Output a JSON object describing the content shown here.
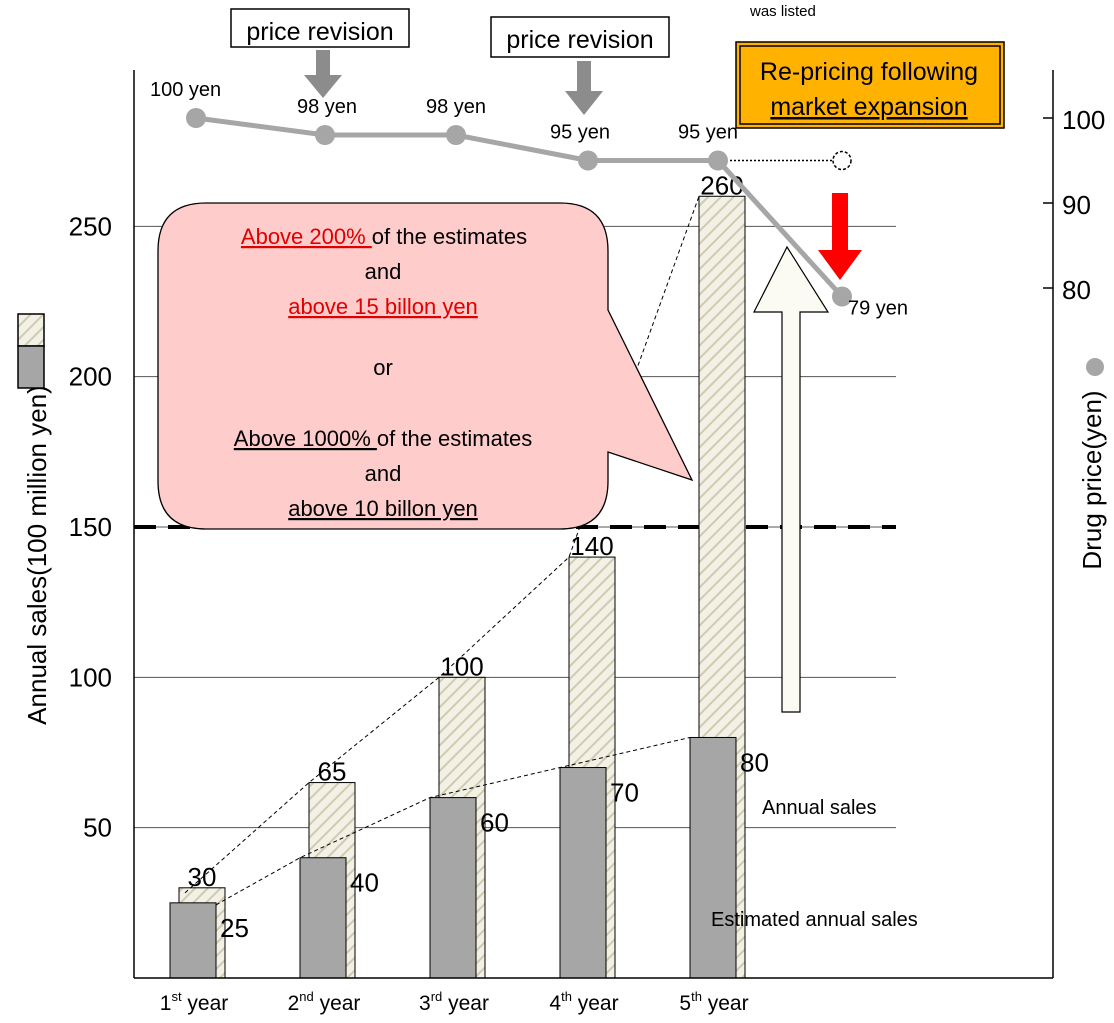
{
  "chart_data": {
    "type": "bar",
    "categories": [
      {
        "num": "1",
        "sup": "st",
        "rest": " year"
      },
      {
        "num": "2",
        "sup": "nd",
        "rest": " year"
      },
      {
        "num": "3",
        "sup": "rd",
        "rest": " year"
      },
      {
        "num": "4",
        "sup": "th",
        "rest": " year"
      },
      {
        "num": "5",
        "sup": "th",
        "rest": " year"
      }
    ],
    "series": [
      {
        "name": "Estimated annual sales",
        "values": [
          25,
          40,
          60,
          70,
          80
        ]
      },
      {
        "name": "Annual sales",
        "values": [
          30,
          65,
          100,
          140,
          260
        ]
      }
    ],
    "bar_labels": {
      "estimated": [
        "25",
        "40",
        "60",
        "70",
        "80"
      ],
      "actual": [
        "30",
        "65",
        "100",
        "140",
        "260"
      ]
    },
    "ylabel": "Annual sales(100 million yen)",
    "y_ticks": [
      50,
      100,
      150,
      200,
      250
    ],
    "y_max_visible": 302,
    "threshold_line": 150,
    "price_series": {
      "label": "Drug price(yen)",
      "values": [
        100,
        98,
        98,
        95,
        95,
        79
      ],
      "labels": [
        "100 yen",
        "98 yen",
        "98 yen",
        "95 yen",
        "95 yen",
        "79 yen"
      ],
      "hypothetical_value": 95,
      "right_ticks": [
        80,
        90,
        100
      ],
      "right_tick_labels": [
        "80",
        "90",
        "100"
      ]
    },
    "legend": {
      "actual": "Annual sales",
      "estimated": "Estimated annual sales"
    },
    "annotations": {
      "revision_label": "price revision",
      "repricing_label": [
        "Re-pricing following",
        "market expansion"
      ],
      "top_note": "was listed",
      "callout": {
        "l1a": "Above 200% ",
        "l1b": "of the estimates",
        "l2": "and",
        "l3": "above  15 billon yen",
        "l4": "or",
        "l5a": "Above 1000% ",
        "l5b": "of the estimates",
        "l6": "and",
        "l7": "above 10 billon yen"
      }
    }
  }
}
